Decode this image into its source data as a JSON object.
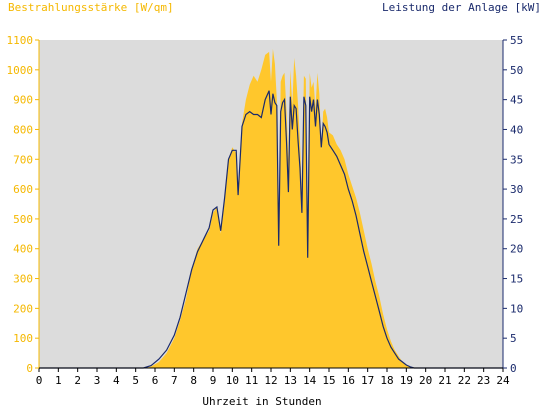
{
  "chart_data": {
    "type": "area",
    "title": "",
    "left_axis_label": "Bestrahlungsstärke [W/qm]",
    "right_axis_label": "Leistung der Anlage [kW]",
    "xlabel": "Uhrzeit in Stunden",
    "x_ticks": [
      "0",
      "1",
      "2",
      "3",
      "4",
      "5",
      "6",
      "7",
      "8",
      "9",
      "10",
      "11",
      "12",
      "13",
      "14",
      "15",
      "16",
      "17",
      "18",
      "19",
      "20",
      "21",
      "22",
      "23",
      "24"
    ],
    "left_ticks": [
      "0",
      "100",
      "200",
      "300",
      "400",
      "500",
      "600",
      "700",
      "800",
      "900",
      "1000",
      "1100"
    ],
    "right_ticks": [
      "0",
      "5",
      "10",
      "15",
      "20",
      "25",
      "30",
      "35",
      "40",
      "45",
      "50",
      "55"
    ],
    "xlim": [
      0,
      24
    ],
    "ylim_left": [
      0,
      1100
    ],
    "ylim_right": [
      0,
      55
    ],
    "grid": false,
    "colors": {
      "background": "#DCDCDC",
      "irradiance_fill": "#FFC72C",
      "power_line": "#1A2A6C",
      "left_label": "#F5B800",
      "right_label": "#1A2A6C"
    },
    "series": [
      {
        "name": "Bestrahlungsstärke [W/qm]",
        "axis": "left",
        "style": "filled-area",
        "x": [
          0,
          5.5,
          5.8,
          6.2,
          6.6,
          7.0,
          7.3,
          7.6,
          7.9,
          8.2,
          8.5,
          8.8,
          9.0,
          9.2,
          9.4,
          9.6,
          9.8,
          10.0,
          10.2,
          10.3,
          10.5,
          10.7,
          10.9,
          11.1,
          11.3,
          11.5,
          11.7,
          11.9,
          12.0,
          12.1,
          12.2,
          12.3,
          12.4,
          12.5,
          12.6,
          12.7,
          12.8,
          12.9,
          13.0,
          13.1,
          13.2,
          13.3,
          13.4,
          13.5,
          13.6,
          13.7,
          13.8,
          13.9,
          14.0,
          14.1,
          14.2,
          14.3,
          14.4,
          14.5,
          14.6,
          14.7,
          14.8,
          14.9,
          15.0,
          15.2,
          15.4,
          15.6,
          15.8,
          16.0,
          16.2,
          16.4,
          16.6,
          16.8,
          17.0,
          17.2,
          17.4,
          17.6,
          17.8,
          18.0,
          18.2,
          18.4,
          18.6,
          18.8,
          19.0,
          19.2,
          19.4,
          19.6,
          19.8,
          24
        ],
        "y": [
          0,
          0,
          5,
          20,
          50,
          100,
          160,
          230,
          330,
          400,
          430,
          460,
          520,
          540,
          450,
          560,
          700,
          740,
          720,
          580,
          820,
          900,
          950,
          980,
          960,
          1000,
          1050,
          1060,
          960,
          1070,
          1020,
          900,
          420,
          960,
          980,
          990,
          860,
          700,
          1000,
          880,
          1040,
          980,
          880,
          760,
          590,
          980,
          970,
          400,
          990,
          940,
          960,
          870,
          990,
          920,
          730,
          860,
          870,
          840,
          790,
          780,
          750,
          730,
          700,
          650,
          610,
          570,
          520,
          460,
          400,
          350,
          290,
          240,
          180,
          130,
          90,
          60,
          40,
          20,
          10,
          4,
          2,
          0,
          0,
          0
        ]
      },
      {
        "name": "Leistung der Anlage [kW]",
        "axis": "right",
        "style": "line",
        "x": [
          0,
          5.4,
          5.8,
          6.2,
          6.6,
          7.0,
          7.3,
          7.6,
          7.9,
          8.2,
          8.5,
          8.8,
          9.0,
          9.2,
          9.4,
          9.6,
          9.8,
          10.0,
          10.2,
          10.3,
          10.5,
          10.7,
          10.9,
          11.1,
          11.3,
          11.5,
          11.7,
          11.9,
          12.0,
          12.1,
          12.2,
          12.3,
          12.4,
          12.5,
          12.6,
          12.7,
          12.8,
          12.9,
          13.0,
          13.1,
          13.2,
          13.3,
          13.4,
          13.5,
          13.6,
          13.7,
          13.8,
          13.9,
          14.0,
          14.1,
          14.2,
          14.3,
          14.4,
          14.5,
          14.6,
          14.7,
          14.8,
          14.9,
          15.0,
          15.2,
          15.4,
          15.6,
          15.8,
          16.0,
          16.2,
          16.4,
          16.6,
          16.8,
          17.0,
          17.2,
          17.4,
          17.6,
          17.8,
          18.0,
          18.2,
          18.4,
          18.6,
          18.8,
          19.0,
          19.2,
          19.4,
          19.6,
          19.8,
          24
        ],
        "y": [
          0,
          0,
          0.4,
          1.5,
          3.0,
          5.5,
          8.5,
          12.5,
          16.5,
          19.5,
          21.5,
          23.5,
          26.5,
          27.0,
          23.0,
          28.5,
          35.0,
          36.5,
          36.5,
          29.0,
          40.5,
          42.5,
          43.0,
          42.5,
          42.5,
          42.0,
          45.0,
          46.5,
          42.5,
          46.0,
          44.5,
          44.0,
          20.5,
          43.0,
          44.5,
          45.0,
          38.0,
          29.5,
          45.5,
          40.0,
          44.0,
          43.5,
          38.0,
          33.5,
          26.0,
          45.5,
          44.0,
          18.5,
          45.5,
          43.0,
          45.0,
          40.5,
          45.0,
          42.5,
          37.0,
          41.0,
          40.5,
          39.5,
          37.5,
          36.5,
          35.5,
          34.0,
          32.5,
          30.0,
          28.0,
          25.5,
          22.5,
          19.5,
          17.0,
          14.5,
          12.0,
          9.5,
          7.0,
          5.0,
          3.5,
          2.5,
          1.5,
          1.0,
          0.5,
          0.2,
          0,
          0,
          0,
          0
        ]
      }
    ]
  }
}
